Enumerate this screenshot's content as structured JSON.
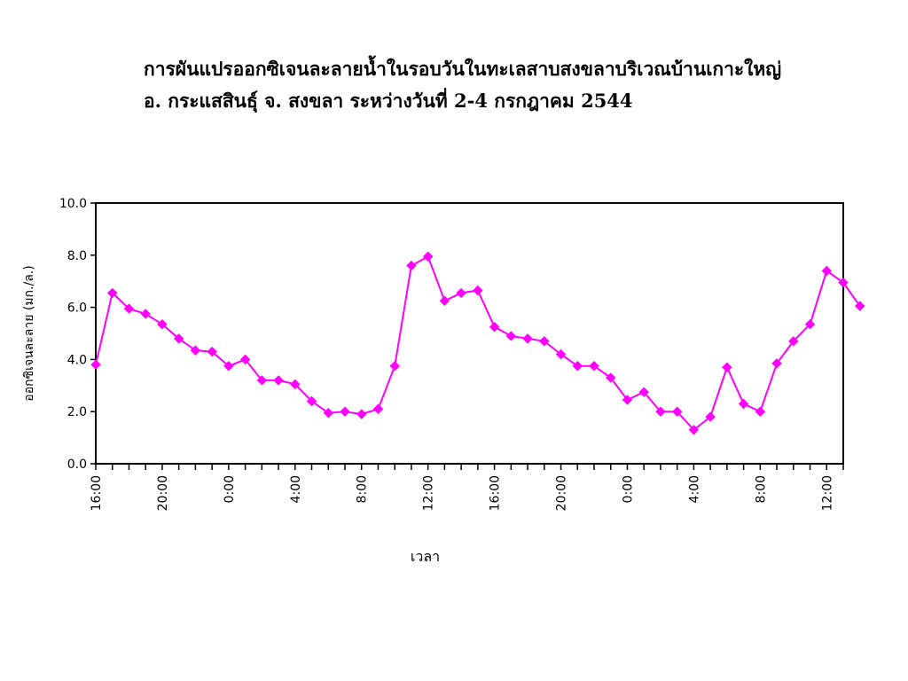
{
  "chart_data": {
    "type": "line",
    "title_line1": "การผันแปรออกซิเจนละลายน้ำในรอบวันในทะเลสาบสงขลาบริเวณบ้านเกาะใหญ่",
    "title_line2": "อ. กระแสสินธุ์   จ. สงขลา  ระหว่างวันที่ 2-4 กรกฎาคม 2544",
    "xlabel": "เวลา",
    "ylabel": "ออกซิเจนละลาย (มก./ล.)",
    "ylim": [
      0,
      10
    ],
    "yticks": [
      "0.0",
      "2.0",
      "4.0",
      "6.0",
      "8.0",
      "10.0"
    ],
    "xlim": [
      0,
      45
    ],
    "xtick_labels": [
      {
        "x": 0,
        "label": "16:00"
      },
      {
        "x": 4,
        "label": "20:00"
      },
      {
        "x": 8,
        "label": "0:00"
      },
      {
        "x": 12,
        "label": "4:00"
      },
      {
        "x": 16,
        "label": "8:00"
      },
      {
        "x": 20,
        "label": "12:00"
      },
      {
        "x": 24,
        "label": "16:00"
      },
      {
        "x": 28,
        "label": "20:00"
      },
      {
        "x": 32,
        "label": "0:00"
      },
      {
        "x": 36,
        "label": "4:00"
      },
      {
        "x": 40,
        "label": "8:00"
      },
      {
        "x": 44,
        "label": "12:00"
      }
    ],
    "grid": false,
    "legend": "none",
    "series": [
      {
        "color": "#FF00FF",
        "marker": "diamond",
        "values": [
          3.8,
          6.55,
          5.95,
          5.75,
          5.35,
          4.8,
          4.35,
          4.3,
          3.75,
          4.0,
          3.2,
          3.2,
          3.05,
          2.4,
          1.95,
          2.0,
          1.9,
          2.1,
          3.75,
          7.6,
          7.95,
          6.25,
          6.55,
          6.65,
          5.25,
          4.9,
          4.8,
          4.7,
          4.2,
          3.75,
          3.75,
          3.3,
          2.45,
          2.75,
          2.0,
          2.0,
          1.3,
          1.8,
          3.7,
          2.3,
          2.0,
          3.85,
          4.7,
          5.35,
          7.4,
          6.95,
          6.05
        ]
      }
    ]
  }
}
